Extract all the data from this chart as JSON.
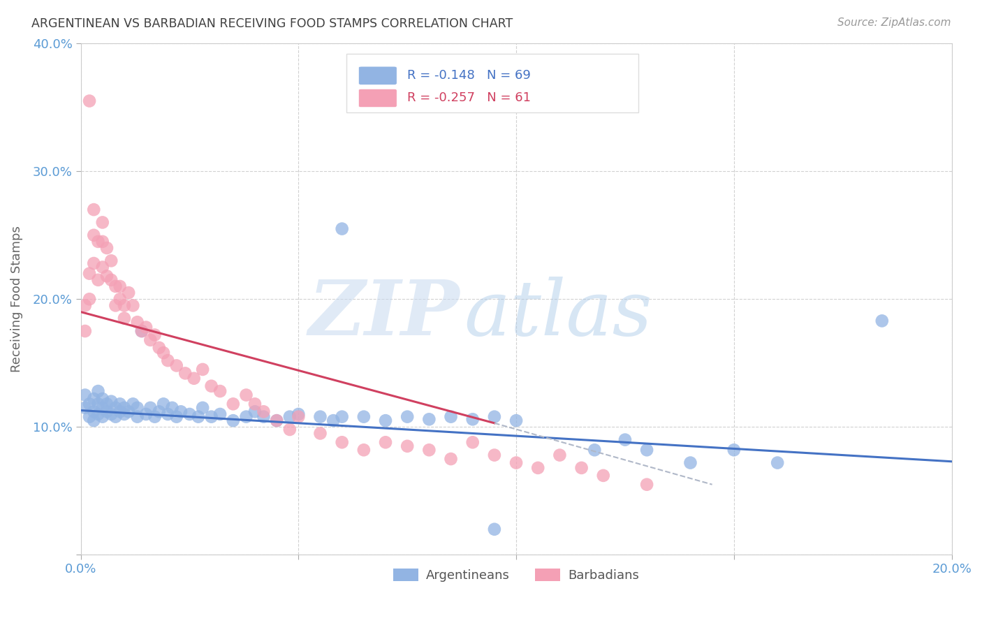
{
  "title": "ARGENTINEAN VS BARBADIAN RECEIVING FOOD STAMPS CORRELATION CHART",
  "source": "Source: ZipAtlas.com",
  "ylabel": "Receiving Food Stamps",
  "xlim": [
    0.0,
    0.2
  ],
  "ylim": [
    0.0,
    0.4
  ],
  "color_argentinean": "#92b4e3",
  "color_barbadian": "#f4a0b5",
  "trend_color_argentinean": "#4472c4",
  "trend_color_barbadian": "#d04060",
  "background_color": "#ffffff",
  "grid_color": "#cccccc",
  "axis_color": "#5b9bd5",
  "title_color": "#404040",
  "arg_trend": [
    0.0,
    0.113,
    0.2,
    0.073
  ],
  "bar_trend_solid": [
    0.0,
    0.19,
    0.095,
    0.103
  ],
  "bar_trend_dash": [
    0.095,
    0.103,
    0.145,
    0.055
  ],
  "arg_x": [
    0.001,
    0.001,
    0.002,
    0.002,
    0.003,
    0.003,
    0.003,
    0.004,
    0.004,
    0.004,
    0.005,
    0.005,
    0.005,
    0.006,
    0.006,
    0.007,
    0.007,
    0.008,
    0.008,
    0.009,
    0.009,
    0.01,
    0.01,
    0.011,
    0.012,
    0.013,
    0.013,
    0.014,
    0.015,
    0.016,
    0.017,
    0.018,
    0.019,
    0.02,
    0.021,
    0.022,
    0.023,
    0.025,
    0.027,
    0.028,
    0.03,
    0.032,
    0.035,
    0.038,
    0.04,
    0.042,
    0.045,
    0.048,
    0.05,
    0.055,
    0.058,
    0.06,
    0.065,
    0.07,
    0.075,
    0.08,
    0.085,
    0.09,
    0.095,
    0.1,
    0.06,
    0.118,
    0.125,
    0.13,
    0.14,
    0.15,
    0.16,
    0.184,
    0.095
  ],
  "arg_y": [
    0.115,
    0.125,
    0.108,
    0.118,
    0.112,
    0.122,
    0.105,
    0.11,
    0.118,
    0.128,
    0.108,
    0.115,
    0.122,
    0.112,
    0.118,
    0.11,
    0.12,
    0.115,
    0.108,
    0.118,
    0.112,
    0.11,
    0.115,
    0.112,
    0.118,
    0.108,
    0.115,
    0.175,
    0.11,
    0.115,
    0.108,
    0.112,
    0.118,
    0.11,
    0.115,
    0.108,
    0.112,
    0.11,
    0.108,
    0.115,
    0.108,
    0.11,
    0.105,
    0.108,
    0.112,
    0.108,
    0.105,
    0.108,
    0.11,
    0.108,
    0.105,
    0.108,
    0.108,
    0.105,
    0.108,
    0.106,
    0.108,
    0.106,
    0.108,
    0.105,
    0.255,
    0.082,
    0.09,
    0.082,
    0.072,
    0.082,
    0.072,
    0.183,
    0.02
  ],
  "bar_x": [
    0.001,
    0.001,
    0.002,
    0.002,
    0.003,
    0.003,
    0.003,
    0.004,
    0.004,
    0.005,
    0.005,
    0.005,
    0.006,
    0.006,
    0.007,
    0.007,
    0.008,
    0.008,
    0.009,
    0.009,
    0.01,
    0.01,
    0.011,
    0.012,
    0.013,
    0.014,
    0.015,
    0.016,
    0.017,
    0.018,
    0.019,
    0.02,
    0.022,
    0.024,
    0.026,
    0.028,
    0.03,
    0.032,
    0.035,
    0.038,
    0.04,
    0.042,
    0.045,
    0.048,
    0.05,
    0.055,
    0.06,
    0.065,
    0.07,
    0.075,
    0.08,
    0.085,
    0.09,
    0.095,
    0.1,
    0.105,
    0.11,
    0.115,
    0.12,
    0.13,
    0.002
  ],
  "bar_y": [
    0.195,
    0.175,
    0.2,
    0.22,
    0.25,
    0.27,
    0.228,
    0.245,
    0.215,
    0.26,
    0.245,
    0.225,
    0.24,
    0.218,
    0.23,
    0.215,
    0.21,
    0.195,
    0.21,
    0.2,
    0.195,
    0.185,
    0.205,
    0.195,
    0.182,
    0.175,
    0.178,
    0.168,
    0.172,
    0.162,
    0.158,
    0.152,
    0.148,
    0.142,
    0.138,
    0.145,
    0.132,
    0.128,
    0.118,
    0.125,
    0.118,
    0.112,
    0.105,
    0.098,
    0.108,
    0.095,
    0.088,
    0.082,
    0.088,
    0.085,
    0.082,
    0.075,
    0.088,
    0.078,
    0.072,
    0.068,
    0.078,
    0.068,
    0.062,
    0.055,
    0.355
  ]
}
